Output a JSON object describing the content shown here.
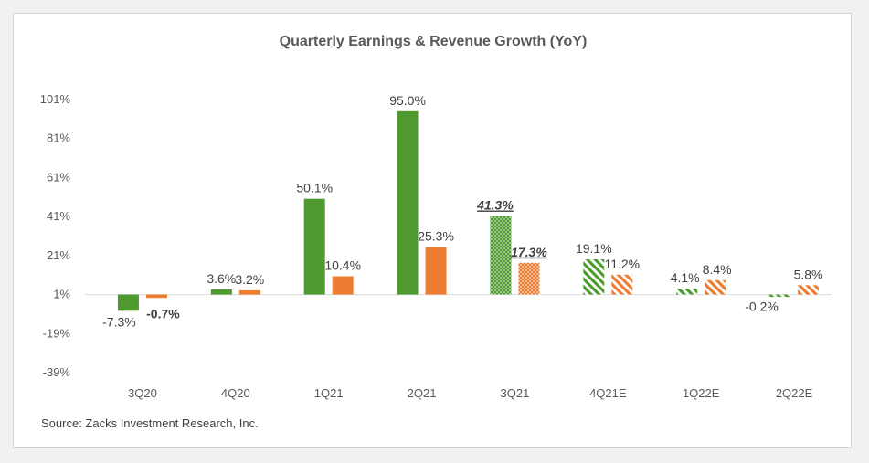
{
  "chart_data": {
    "type": "bar",
    "title": "Quarterly Earnings & Revenue Growth (YoY)",
    "categories": [
      "3Q20",
      "4Q20",
      "1Q21",
      "2Q21",
      "3Q21",
      "4Q21E",
      "1Q22E",
      "2Q22E"
    ],
    "series": [
      {
        "values": [
          -7.3,
          3.6,
          50.1,
          95.0,
          41.3,
          19.1,
          4.1,
          -0.2
        ],
        "labels": [
          "-7.3%",
          "3.6%",
          "50.1%",
          "95.0%",
          "41.3%",
          "19.1%",
          "4.1%",
          "-0.2%"
        ]
      },
      {
        "values": [
          -0.7,
          3.2,
          10.4,
          25.3,
          17.3,
          11.2,
          8.4,
          5.8
        ],
        "labels": [
          "-0.7%",
          "3.2%",
          "10.4%",
          "25.3%",
          "17.3%",
          "11.2%",
          "8.4%",
          "5.8%"
        ]
      }
    ],
    "fill_style": [
      "solid",
      "solid",
      "solid",
      "solid",
      "dotted",
      "striped",
      "striped",
      "striped"
    ],
    "colors": [
      "#4e9a2f",
      "#ed7d31"
    ],
    "ylim": [
      -39,
      101
    ],
    "yticks": [
      101,
      81,
      61,
      41,
      21,
      1,
      -19,
      -39
    ],
    "ytick_labels": [
      "101%",
      "81%",
      "61%",
      "41%",
      "21%",
      "1%",
      "-19%",
      "-39%"
    ],
    "baseline": 1,
    "xlabel": "",
    "ylabel": "",
    "grid": false,
    "legend": "none"
  },
  "source": "Source: Zacks Investment Research, Inc."
}
